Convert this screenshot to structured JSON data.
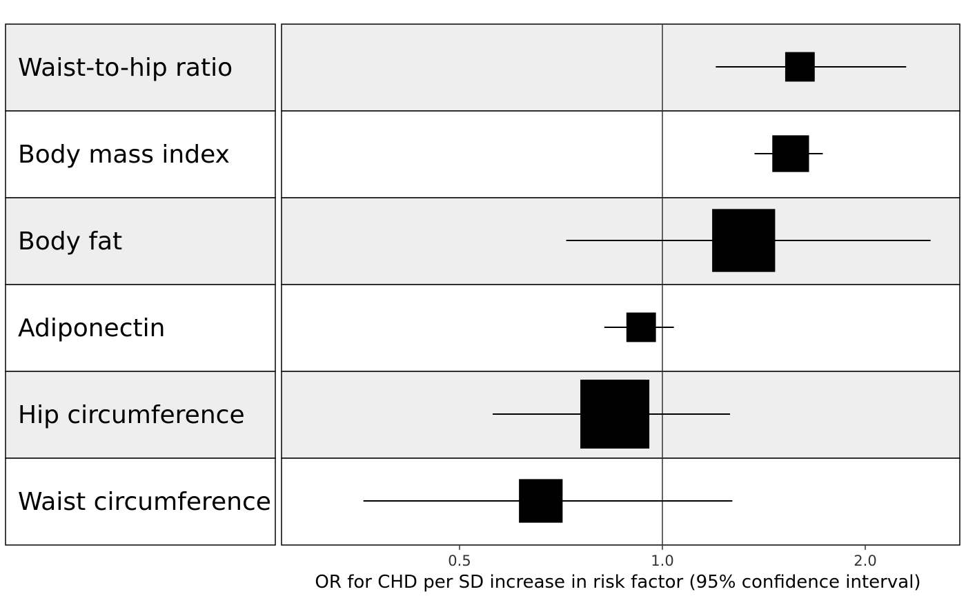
{
  "chart_data": {
    "type": "forest",
    "xlabel": "OR for CHD per SD increase in risk factor (95% confidence interval)",
    "x_scale": "log",
    "xlim": [
      0.3,
      2.8
    ],
    "reference_line": 1.0,
    "x_ticks": [
      {
        "value": 0.5,
        "label": "0.5"
      },
      {
        "value": 1.0,
        "label": "1.0"
      },
      {
        "value": 2.0,
        "label": "2.0"
      }
    ],
    "rows": [
      {
        "label": "Waist-to-hip ratio",
        "or": 1.6,
        "lower": 1.2,
        "upper": 2.3,
        "weight": 0.22,
        "shaded": true
      },
      {
        "label": "Body mass index",
        "or": 1.55,
        "lower": 1.37,
        "upper": 1.73,
        "weight": 0.34,
        "shaded": false
      },
      {
        "label": "Body fat",
        "or": 1.32,
        "lower": 0.72,
        "upper": 2.5,
        "weight": 1.0,
        "shaded": true
      },
      {
        "label": "Adiponectin",
        "or": 0.93,
        "lower": 0.82,
        "upper": 1.04,
        "weight": 0.22,
        "shaded": false
      },
      {
        "label": "Hip circumference",
        "or": 0.85,
        "lower": 0.56,
        "upper": 1.26,
        "weight": 1.2,
        "shaded": true
      },
      {
        "label": "Waist circumference",
        "or": 0.66,
        "lower": 0.36,
        "upper": 1.27,
        "weight": 0.48,
        "shaded": false
      }
    ]
  }
}
